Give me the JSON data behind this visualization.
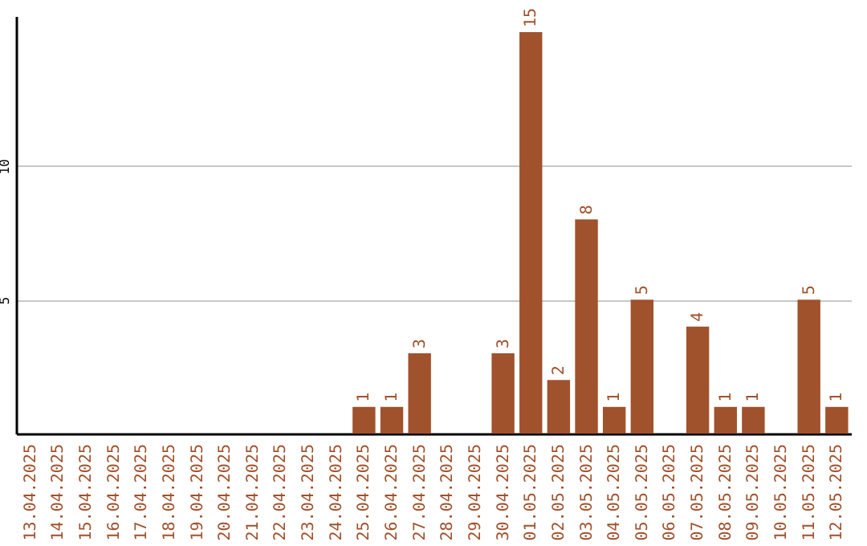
{
  "chart_data": {
    "type": "bar",
    "categories": [
      "13.04.2025",
      "14.04.2025",
      "15.04.2025",
      "16.04.2025",
      "17.04.2025",
      "18.04.2025",
      "19.04.2025",
      "20.04.2025",
      "21.04.2025",
      "22.04.2025",
      "23.04.2025",
      "24.04.2025",
      "25.04.2025",
      "26.04.2025",
      "27.04.2025",
      "28.04.2025",
      "29.04.2025",
      "30.04.2025",
      "01.05.2025",
      "02.05.2025",
      "03.05.2025",
      "04.05.2025",
      "05.05.2025",
      "06.05.2025",
      "07.05.2025",
      "08.05.2025",
      "09.05.2025",
      "10.05.2025",
      "11.05.2025",
      "12.05.2025"
    ],
    "values": [
      0,
      0,
      0,
      0,
      0,
      0,
      0,
      0,
      0,
      0,
      0,
      0,
      1,
      1,
      3,
      0,
      0,
      3,
      15,
      2,
      8,
      1,
      5,
      0,
      4,
      1,
      1,
      0,
      5,
      1
    ],
    "value_labels": [
      null,
      null,
      null,
      null,
      null,
      null,
      null,
      null,
      null,
      null,
      null,
      null,
      "1",
      "1",
      "3",
      null,
      null,
      "3",
      "15",
      "2",
      "8",
      "1",
      "5",
      null,
      "4",
      "1",
      "1",
      null,
      "5",
      "1"
    ],
    "color": "#a0522d",
    "ylim": [
      0,
      15.6
    ],
    "yticks": [
      5,
      10
    ],
    "grid": "y"
  }
}
